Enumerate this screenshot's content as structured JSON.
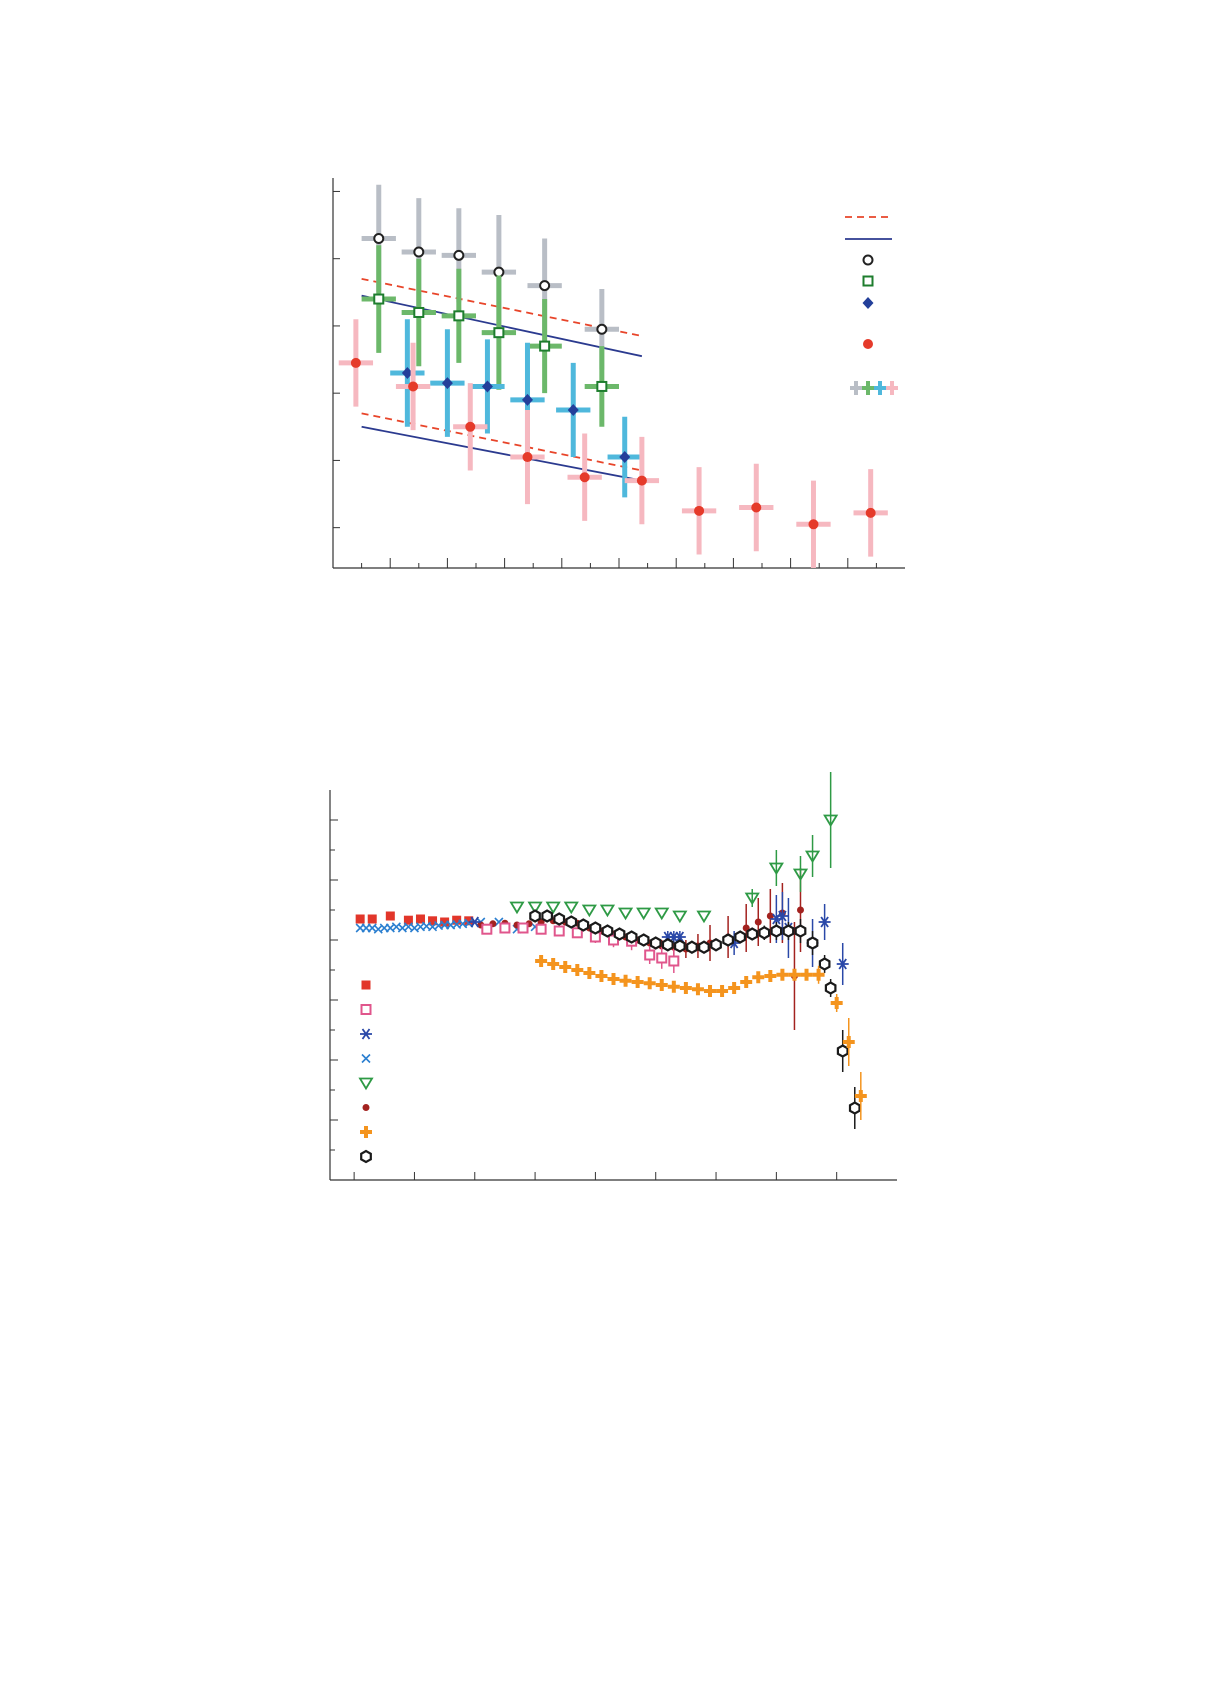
{
  "chart_data": [
    {
      "type": "scatter",
      "title": "",
      "xlabel": "",
      "ylabel": "",
      "grid": false,
      "legend_position": "top-right",
      "xlim": [
        0,
        10
      ],
      "ylim": [
        0,
        5.8
      ],
      "x_ticks": [
        0.5,
        1,
        1.5,
        2,
        2.5,
        3,
        3.5,
        4,
        4.5,
        5,
        5.5,
        6,
        6.5,
        7,
        7.5,
        8,
        8.5,
        9,
        9.5
      ],
      "y_ticks": [
        0.6,
        1.6,
        2.6,
        3.6,
        4.6,
        5.6
      ],
      "legend_symbols": [
        "dashed-line",
        "solid-line",
        "open-circle",
        "open-square",
        "filled-diamond",
        "filled-circle",
        "error-bar-swatch"
      ],
      "colors": {
        "dashed": "#e8452a",
        "solid": "#2b3a8f",
        "grey": "#b9bec6",
        "green": "#6cb86a",
        "cyan": "#4fb8dc",
        "pink": "#f6b8c0",
        "circle_open": "#222222",
        "square_open": "#1e7d2e",
        "diamond": "#233f9a",
        "dot": "#e53a2a"
      },
      "lines": [
        {
          "style": "dashed",
          "x": [
            0.5,
            5.4
          ],
          "y": [
            4.3,
            3.45
          ]
        },
        {
          "style": "solid",
          "x": [
            0.5,
            5.4
          ],
          "y": [
            4.05,
            3.15
          ]
        },
        {
          "style": "dashed",
          "x": [
            0.5,
            5.4
          ],
          "y": [
            2.3,
            1.45
          ]
        },
        {
          "style": "solid",
          "x": [
            0.5,
            5.4
          ],
          "y": [
            2.1,
            1.3
          ]
        }
      ],
      "series": [
        {
          "marker": "open-circle",
          "bar": "grey",
          "x": [
            0.8,
            1.5,
            2.2,
            2.9,
            3.7,
            4.7
          ],
          "y": [
            4.9,
            4.7,
            4.65,
            4.4,
            4.2,
            3.55
          ],
          "xerr": [
            0.3,
            0.3,
            0.3,
            0.3,
            0.3,
            0.3
          ],
          "yerr": [
            0.8,
            0.8,
            0.7,
            0.85,
            0.7,
            0.6
          ]
        },
        {
          "marker": "open-square",
          "bar": "green",
          "x": [
            0.8,
            1.5,
            2.2,
            2.9,
            3.7,
            4.7
          ],
          "y": [
            4.0,
            3.8,
            3.75,
            3.5,
            3.3,
            2.7
          ],
          "xerr": [
            0.3,
            0.3,
            0.3,
            0.3,
            0.3,
            0.3
          ],
          "yerr": [
            0.8,
            0.8,
            0.7,
            0.85,
            0.7,
            0.6
          ]
        },
        {
          "marker": "filled-diamond",
          "bar": "cyan",
          "x": [
            1.3,
            2.0,
            2.7,
            3.4,
            4.2,
            5.1
          ],
          "y": [
            2.9,
            2.75,
            2.7,
            2.5,
            2.35,
            1.65
          ],
          "xerr": [
            0.3,
            0.3,
            0.3,
            0.3,
            0.3,
            0.3
          ],
          "yerr": [
            0.8,
            0.8,
            0.7,
            0.85,
            0.7,
            0.6
          ]
        },
        {
          "marker": "filled-circle",
          "bar": "pink",
          "x": [
            0.4,
            1.4,
            2.4,
            3.4,
            4.4,
            5.4,
            6.4,
            7.4,
            8.4,
            9.4
          ],
          "y": [
            3.05,
            2.7,
            2.1,
            1.65,
            1.35,
            1.3,
            0.85,
            0.9,
            0.65,
            0.82
          ],
          "xerr": [
            0.3,
            0.3,
            0.3,
            0.3,
            0.3,
            0.3,
            0.3,
            0.3,
            0.3,
            0.3
          ],
          "yerr": [
            0.65,
            0.65,
            0.65,
            0.7,
            0.65,
            0.65,
            0.65,
            0.65,
            0.65,
            0.65
          ]
        }
      ]
    },
    {
      "type": "scatter",
      "title": "",
      "xlabel": "",
      "ylabel": "",
      "grid": false,
      "legend_position": "bottom-left",
      "xlim": [
        0,
        9.4
      ],
      "ylim": [
        0,
        6.5
      ],
      "x_ticks": [
        0.4,
        1.4,
        2.4,
        3.4,
        4.4,
        5.4,
        6.4,
        7.4,
        8.4
      ],
      "y_ticks": [
        0.5,
        1.0,
        1.5,
        2.0,
        2.5,
        3.0,
        3.5,
        4.0,
        4.5,
        5.0,
        5.5,
        6.0
      ],
      "legend_symbols": [
        "filled-square",
        "open-square",
        "asterisk",
        "cross",
        "open-triangle-down",
        "small-filled-circle",
        "filled-cross",
        "open-hexagon"
      ],
      "colors": {
        "filled_square": "#e2362a",
        "open_square": "#e0568c",
        "asterisk": "#2a48a8",
        "cross": "#2b7fd0",
        "triangle": "#2e9a45",
        "small_dot": "#a3221f",
        "filled_cross": "#f4941e",
        "hexagon": "#1a1a1a"
      },
      "series": [
        {
          "marker": "filled-square",
          "x": [
            0.5,
            0.7,
            1.0,
            1.3,
            1.5,
            1.7,
            1.9,
            2.1,
            2.3
          ],
          "y": [
            4.35,
            4.35,
            4.4,
            4.33,
            4.35,
            4.32,
            4.3,
            4.33,
            4.32
          ]
        },
        {
          "marker": "cross",
          "x": [
            0.5,
            0.6,
            0.7,
            0.8,
            0.9,
            1.0,
            1.1,
            1.2,
            1.3,
            1.4,
            1.5,
            1.6,
            1.7,
            1.8,
            1.9,
            2.0,
            2.1,
            2.2,
            2.3,
            2.5,
            2.8,
            3.1,
            3.4
          ],
          "y": [
            4.2,
            4.2,
            4.2,
            4.18,
            4.2,
            4.2,
            4.22,
            4.2,
            4.22,
            4.2,
            4.22,
            4.23,
            4.22,
            4.24,
            4.25,
            4.25,
            4.26,
            4.27,
            4.28,
            4.3,
            4.3,
            4.18,
            4.22
          ]
        },
        {
          "marker": "small-filled-circle",
          "x": [
            2.5,
            2.7,
            2.9,
            3.1,
            3.3,
            3.5,
            3.7,
            3.9,
            4.1,
            4.3,
            4.5,
            4.7,
            4.9,
            5.1,
            5.3,
            5.5,
            5.7,
            5.9,
            6.1,
            6.3,
            6.6,
            6.9,
            7.1,
            7.3,
            7.5,
            7.7,
            7.8
          ],
          "y": [
            4.25,
            4.27,
            4.28,
            4.25,
            4.27,
            4.3,
            4.32,
            4.3,
            4.28,
            4.2,
            4.15,
            4.1,
            4.05,
            4.0,
            3.95,
            3.9,
            3.88,
            3.85,
            3.9,
            3.95,
            4.05,
            4.2,
            4.3,
            4.4,
            4.45,
            3.4,
            4.5
          ],
          "yerr": [
            0.05,
            0.05,
            0.05,
            0.05,
            0.05,
            0.05,
            0.05,
            0.05,
            0.05,
            0.05,
            0.05,
            0.05,
            0.05,
            0.05,
            0.05,
            0.1,
            0.15,
            0.15,
            0.2,
            0.3,
            0.35,
            0.4,
            0.4,
            0.45,
            0.5,
            0.9,
            0.7
          ]
        },
        {
          "marker": "open-square",
          "x": [
            2.6,
            2.9,
            3.2,
            3.5,
            3.8,
            4.1,
            4.4,
            4.7,
            5.0,
            5.3,
            5.5,
            5.7
          ],
          "y": [
            4.18,
            4.2,
            4.2,
            4.18,
            4.15,
            4.12,
            4.05,
            4.0,
            3.98,
            3.75,
            3.7,
            3.65
          ],
          "yerr": [
            0.05,
            0.05,
            0.05,
            0.05,
            0.05,
            0.08,
            0.1,
            0.12,
            0.15,
            0.15,
            0.18,
            0.2
          ]
        },
        {
          "marker": "open-triangle-down",
          "x": [
            3.1,
            3.4,
            3.7,
            4.0,
            4.3,
            4.6,
            4.9,
            5.2,
            5.5,
            5.8,
            6.2,
            7.0,
            7.4,
            7.8,
            8.0,
            8.3
          ],
          "y": [
            4.55,
            4.55,
            4.55,
            4.55,
            4.5,
            4.5,
            4.45,
            4.45,
            4.45,
            4.4,
            4.4,
            4.7,
            5.2,
            5.1,
            5.4,
            6.0
          ],
          "yerr": [
            0,
            0,
            0,
            0,
            0,
            0,
            0,
            0,
            0,
            0,
            0,
            0.15,
            0.3,
            0.3,
            0.35,
            0.8
          ]
        },
        {
          "marker": "asterisk",
          "x": [
            2.4,
            5.6,
            5.7,
            5.8,
            6.7,
            7.4,
            7.5,
            7.6,
            8.0,
            8.2,
            8.5
          ],
          "y": [
            4.3,
            4.05,
            4.05,
            4.05,
            3.95,
            4.35,
            4.4,
            4.2,
            3.95,
            4.3,
            3.6
          ],
          "yerr": [
            0,
            0.1,
            0.1,
            0.1,
            0.2,
            0.4,
            0.4,
            0.5,
            0.4,
            0.3,
            0.35
          ]
        },
        {
          "marker": "open-hexagon",
          "x": [
            3.4,
            3.6,
            3.8,
            4.0,
            4.2,
            4.4,
            4.6,
            4.8,
            5.0,
            5.2,
            5.4,
            5.6,
            5.8,
            6.0,
            6.2,
            6.4,
            6.6,
            6.8,
            7.0,
            7.2,
            7.4,
            7.6,
            7.8,
            8.0,
            8.2,
            8.3,
            8.5,
            8.7
          ],
          "y": [
            4.4,
            4.4,
            4.35,
            4.3,
            4.25,
            4.2,
            4.15,
            4.1,
            4.05,
            4.0,
            3.95,
            3.92,
            3.9,
            3.88,
            3.88,
            3.92,
            4.0,
            4.05,
            4.1,
            4.12,
            4.15,
            4.15,
            4.15,
            3.95,
            3.6,
            3.2,
            2.15,
            1.2
          ],
          "yerr": [
            0.05,
            0.05,
            0.05,
            0.05,
            0.05,
            0.05,
            0.05,
            0.05,
            0.05,
            0.05,
            0.05,
            0.05,
            0.05,
            0.05,
            0.05,
            0.05,
            0.08,
            0.1,
            0.1,
            0.12,
            0.15,
            0.15,
            0.2,
            0.2,
            0.15,
            0.15,
            0.35,
            0.35
          ]
        },
        {
          "marker": "filled-cross",
          "x": [
            3.5,
            3.7,
            3.9,
            4.1,
            4.3,
            4.5,
            4.7,
            4.9,
            5.1,
            5.3,
            5.5,
            5.7,
            5.9,
            6.1,
            6.3,
            6.5,
            6.7,
            6.9,
            7.1,
            7.3,
            7.5,
            7.7,
            7.9,
            8.1,
            8.4,
            8.6,
            8.8
          ],
          "y": [
            3.65,
            3.6,
            3.55,
            3.5,
            3.45,
            3.4,
            3.35,
            3.32,
            3.3,
            3.28,
            3.25,
            3.22,
            3.2,
            3.18,
            3.15,
            3.15,
            3.2,
            3.3,
            3.38,
            3.4,
            3.42,
            3.42,
            3.42,
            3.42,
            2.95,
            2.3,
            1.4
          ],
          "yerr": [
            0,
            0,
            0,
            0,
            0,
            0,
            0,
            0,
            0,
            0,
            0,
            0,
            0,
            0,
            0,
            0,
            0,
            0,
            0,
            0,
            0,
            0,
            0,
            0.15,
            0.15,
            0.4,
            0.4
          ]
        }
      ]
    }
  ]
}
